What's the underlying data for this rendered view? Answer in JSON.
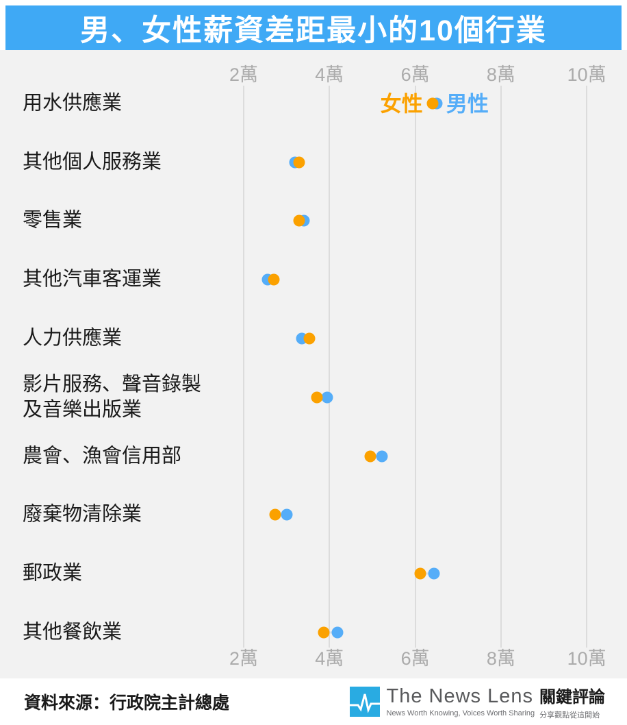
{
  "header": {
    "title": "男、女性薪資差距最小的10個行業"
  },
  "colors": {
    "header_blue": "#3FA9F5",
    "female_orange": "#FBA100",
    "male_blue": "#55ADF8",
    "chart_background": "#F2F2F2",
    "gridline": "#DCDCDC",
    "tick_text": "#ABABAB",
    "category_text": "#1A1A1A",
    "logo_blue": "#29ABE2"
  },
  "chart_data": {
    "type": "scatter",
    "subtype": "dumbbell-dot-plot",
    "title": "男、女性薪資差距最小的10個行業",
    "unit": "萬元",
    "xlim": [
      1.5,
      11
    ],
    "grid": true,
    "x_ticks": [
      {
        "value": 2,
        "label": "2萬"
      },
      {
        "value": 4,
        "label": "4萬"
      },
      {
        "value": 6,
        "label": "6萬"
      },
      {
        "value": 8,
        "label": "8萬"
      },
      {
        "value": 10,
        "label": "10萬"
      }
    ],
    "categories": [
      "用水供應業",
      "其他個人服務業",
      "零售業",
      "其他汽車客運業",
      "人力供應業",
      "影片服務、聲音錄製\n及音樂出版業",
      "農會、漁會信用部",
      "廢棄物清除業",
      "郵政業",
      "其他餐飲業"
    ],
    "series": [
      {
        "name": "女性",
        "key": "female",
        "values": [
          6.4,
          3.3,
          3.29,
          2.71,
          3.54,
          3.7,
          4.96,
          2.73,
          6.12,
          3.86
        ]
      },
      {
        "name": "男性",
        "key": "male",
        "values": [
          6.5,
          3.2,
          3.41,
          2.56,
          3.36,
          3.94,
          5.23,
          3.01,
          6.44,
          4.19
        ]
      }
    ],
    "legend": {
      "position": "first-row-inline",
      "female_label": "女性",
      "male_label": "男性"
    }
  },
  "footer": {
    "source": "資料來源：行政院主計總處",
    "logo": {
      "name": "The News Lens",
      "cjk": "關鍵評論",
      "tagline_en": "News Worth Knowing, Voices Worth Sharing",
      "tagline_cjk": "分享觀點從這開始"
    }
  }
}
